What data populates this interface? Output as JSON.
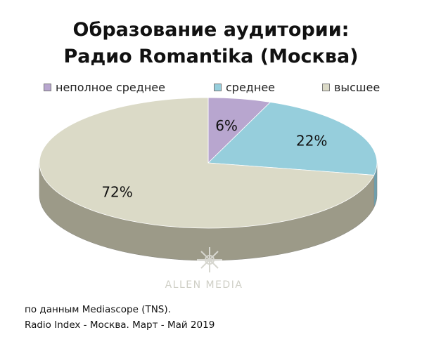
{
  "chart_data": {
    "type": "pie",
    "title_line1": "Образование аудитории:",
    "title_line2": "Радио Romantika (Москва)",
    "categories": [
      "неполное среднее",
      "среднее",
      "высшее"
    ],
    "values": [
      6,
      22,
      72
    ],
    "labels": [
      "6%",
      "22%",
      "72%"
    ],
    "colors": [
      "#b8a6cf",
      "#96cedc",
      "#dbdac7"
    ],
    "side_colors": [
      "#8b7ea0",
      "#6e9fae",
      "#9c9a88"
    ],
    "legend_position": "top"
  },
  "watermark": "ALLEN MEDIA",
  "footnote": {
    "line1": "по данным Mediascope (TNS).",
    "line2": "Radio Index - Москва. Март - Май 2019"
  }
}
